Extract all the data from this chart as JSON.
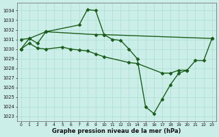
{
  "title": "Graphe pression niveau de la mer (hPa)",
  "bg_color": "#cceee8",
  "grid_color": "#aaddcc",
  "line_color": "#1a5c1a",
  "x_ticks": [
    0,
    1,
    2,
    3,
    4,
    5,
    6,
    7,
    8,
    9,
    10,
    11,
    12,
    13,
    14,
    15,
    16,
    17,
    18,
    19,
    20,
    21,
    22,
    23
  ],
  "ylim": [
    1022.5,
    1034.8
  ],
  "yticks": [
    1023,
    1024,
    1025,
    1026,
    1027,
    1028,
    1029,
    1030,
    1031,
    1032,
    1033,
    1034
  ],
  "series": [
    {
      "x": [
        0,
        1,
        3,
        9,
        10,
        23
      ],
      "y": [
        1031.0,
        1031.1,
        1031.8,
        1031.5,
        1031.5,
        1031.1
      ]
    },
    {
      "x": [
        0,
        1,
        2,
        3,
        5,
        6,
        7,
        8,
        9,
        10,
        13,
        14,
        17,
        18,
        19,
        20
      ],
      "y": [
        1030.0,
        1030.6,
        1030.1,
        1030.0,
        1030.2,
        1030.0,
        1029.9,
        1029.8,
        1029.5,
        1029.2,
        1028.6,
        1028.5,
        1027.5,
        1027.5,
        1027.8,
        1027.8
      ]
    },
    {
      "x": [
        0,
        1,
        2,
        3,
        7,
        8,
        9,
        10,
        11,
        12,
        13,
        14,
        15,
        16,
        17,
        18,
        19,
        20,
        21,
        22,
        23
      ],
      "y": [
        1030.0,
        1031.1,
        1030.6,
        1031.8,
        1032.5,
        1034.1,
        1034.0,
        1031.5,
        1031.0,
        1030.9,
        1030.0,
        1029.0,
        1024.0,
        1023.3,
        1024.8,
        1026.3,
        1027.5,
        1027.8,
        1028.8,
        1028.8,
        1031.1
      ]
    }
  ]
}
